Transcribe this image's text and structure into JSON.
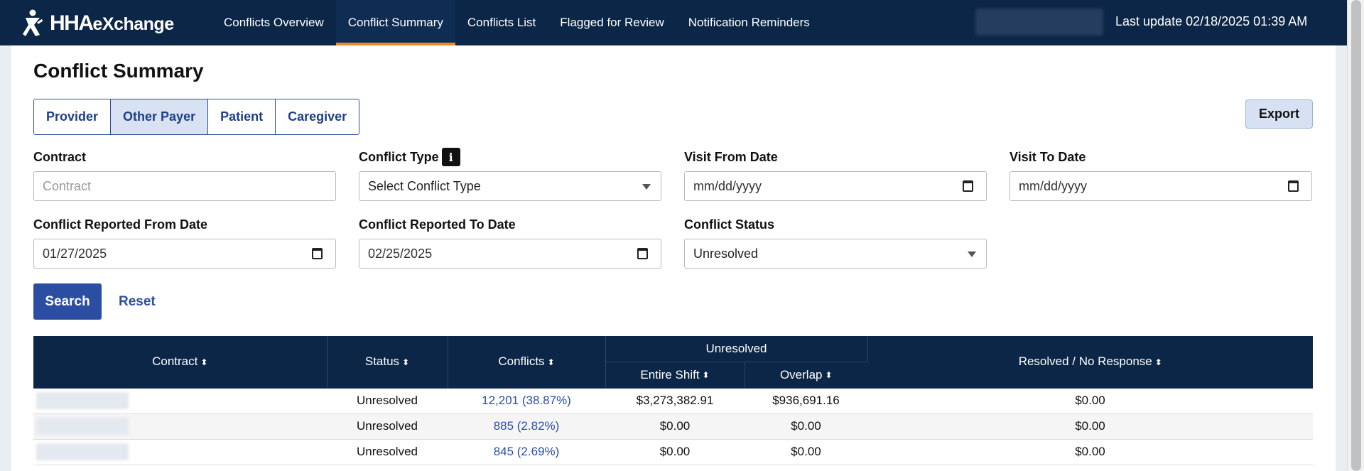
{
  "brand": {
    "logo_main": "HHA",
    "logo_ex": "eXchange"
  },
  "nav": {
    "items": [
      {
        "label": "Conflicts Overview",
        "name": "nav-conflicts-overview"
      },
      {
        "label": "Conflict Summary",
        "name": "nav-conflict-summary"
      },
      {
        "label": "Conflicts List",
        "name": "nav-conflicts-list"
      },
      {
        "label": "Flagged for Review",
        "name": "nav-flagged-for-review"
      },
      {
        "label": "Notification Reminders",
        "name": "nav-notification-reminders"
      }
    ],
    "active": "Conflict Summary",
    "last_update": "Last update 02/18/2025 01:39 AM"
  },
  "page": {
    "title": "Conflict Summary",
    "tabs": [
      "Provider",
      "Other Payer",
      "Patient",
      "Caregiver"
    ],
    "active_tab": "Other Payer",
    "export_label": "Export"
  },
  "filters": {
    "contract": {
      "label": "Contract",
      "placeholder": "Contract",
      "value": ""
    },
    "conflict_type": {
      "label": "Conflict Type",
      "value": "Select Conflict Type",
      "info_icon": "i"
    },
    "visit_from": {
      "label": "Visit From Date",
      "value": "mm/dd/yyyy"
    },
    "visit_to": {
      "label": "Visit To Date",
      "value": "mm/dd/yyyy"
    },
    "reported_from": {
      "label": "Conflict Reported From Date",
      "value": "01/27/2025"
    },
    "reported_to": {
      "label": "Conflict Reported To Date",
      "value": "02/25/2025"
    },
    "status": {
      "label": "Conflict Status",
      "value": "Unresolved"
    }
  },
  "actions": {
    "search_label": "Search",
    "reset_label": "Reset"
  },
  "table": {
    "headers": {
      "contract": "Contract",
      "status": "Status",
      "conflicts": "Conflicts",
      "unresolved": "Unresolved",
      "entire_shift": "Entire Shift",
      "overlap": "Overlap",
      "resolved": "Resolved / No Response"
    },
    "rows": [
      {
        "status": "Unresolved",
        "conflicts": "12,201 (38.87%)",
        "entire_shift": "$3,273,382.91",
        "overlap": "$936,691.16",
        "resolved": "$0.00"
      },
      {
        "status": "Unresolved",
        "conflicts": "885 (2.82%)",
        "entire_shift": "$0.00",
        "overlap": "$0.00",
        "resolved": "$0.00"
      },
      {
        "status": "Unresolved",
        "conflicts": "845 (2.69%)",
        "entire_shift": "$0.00",
        "overlap": "$0.00",
        "resolved": "$0.00"
      }
    ]
  },
  "colors": {
    "nav_bg": "#0c2647",
    "accent": "#f0892c",
    "primary": "#2b4ea3"
  }
}
